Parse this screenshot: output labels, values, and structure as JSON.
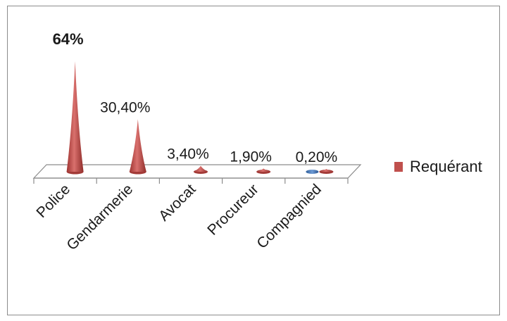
{
  "chart_data": {
    "type": "bar",
    "categories": [
      "Police",
      "Gendarmerie",
      "Avocat",
      "Procureur",
      "Compagnied"
    ],
    "series": [
      {
        "name": "Requérant",
        "values": [
          64,
          30.4,
          3.4,
          1.9,
          0.2
        ]
      }
    ],
    "data_labels": [
      "64%",
      "30,40%",
      "3,40%",
      "1,90%",
      "0,20%"
    ],
    "highlight_label_color": "#ff0000",
    "series_color": "#c0504d",
    "secondary_color": "#4f81bd",
    "legend_position": "right",
    "grid": false,
    "ylim": [
      0,
      64
    ]
  }
}
